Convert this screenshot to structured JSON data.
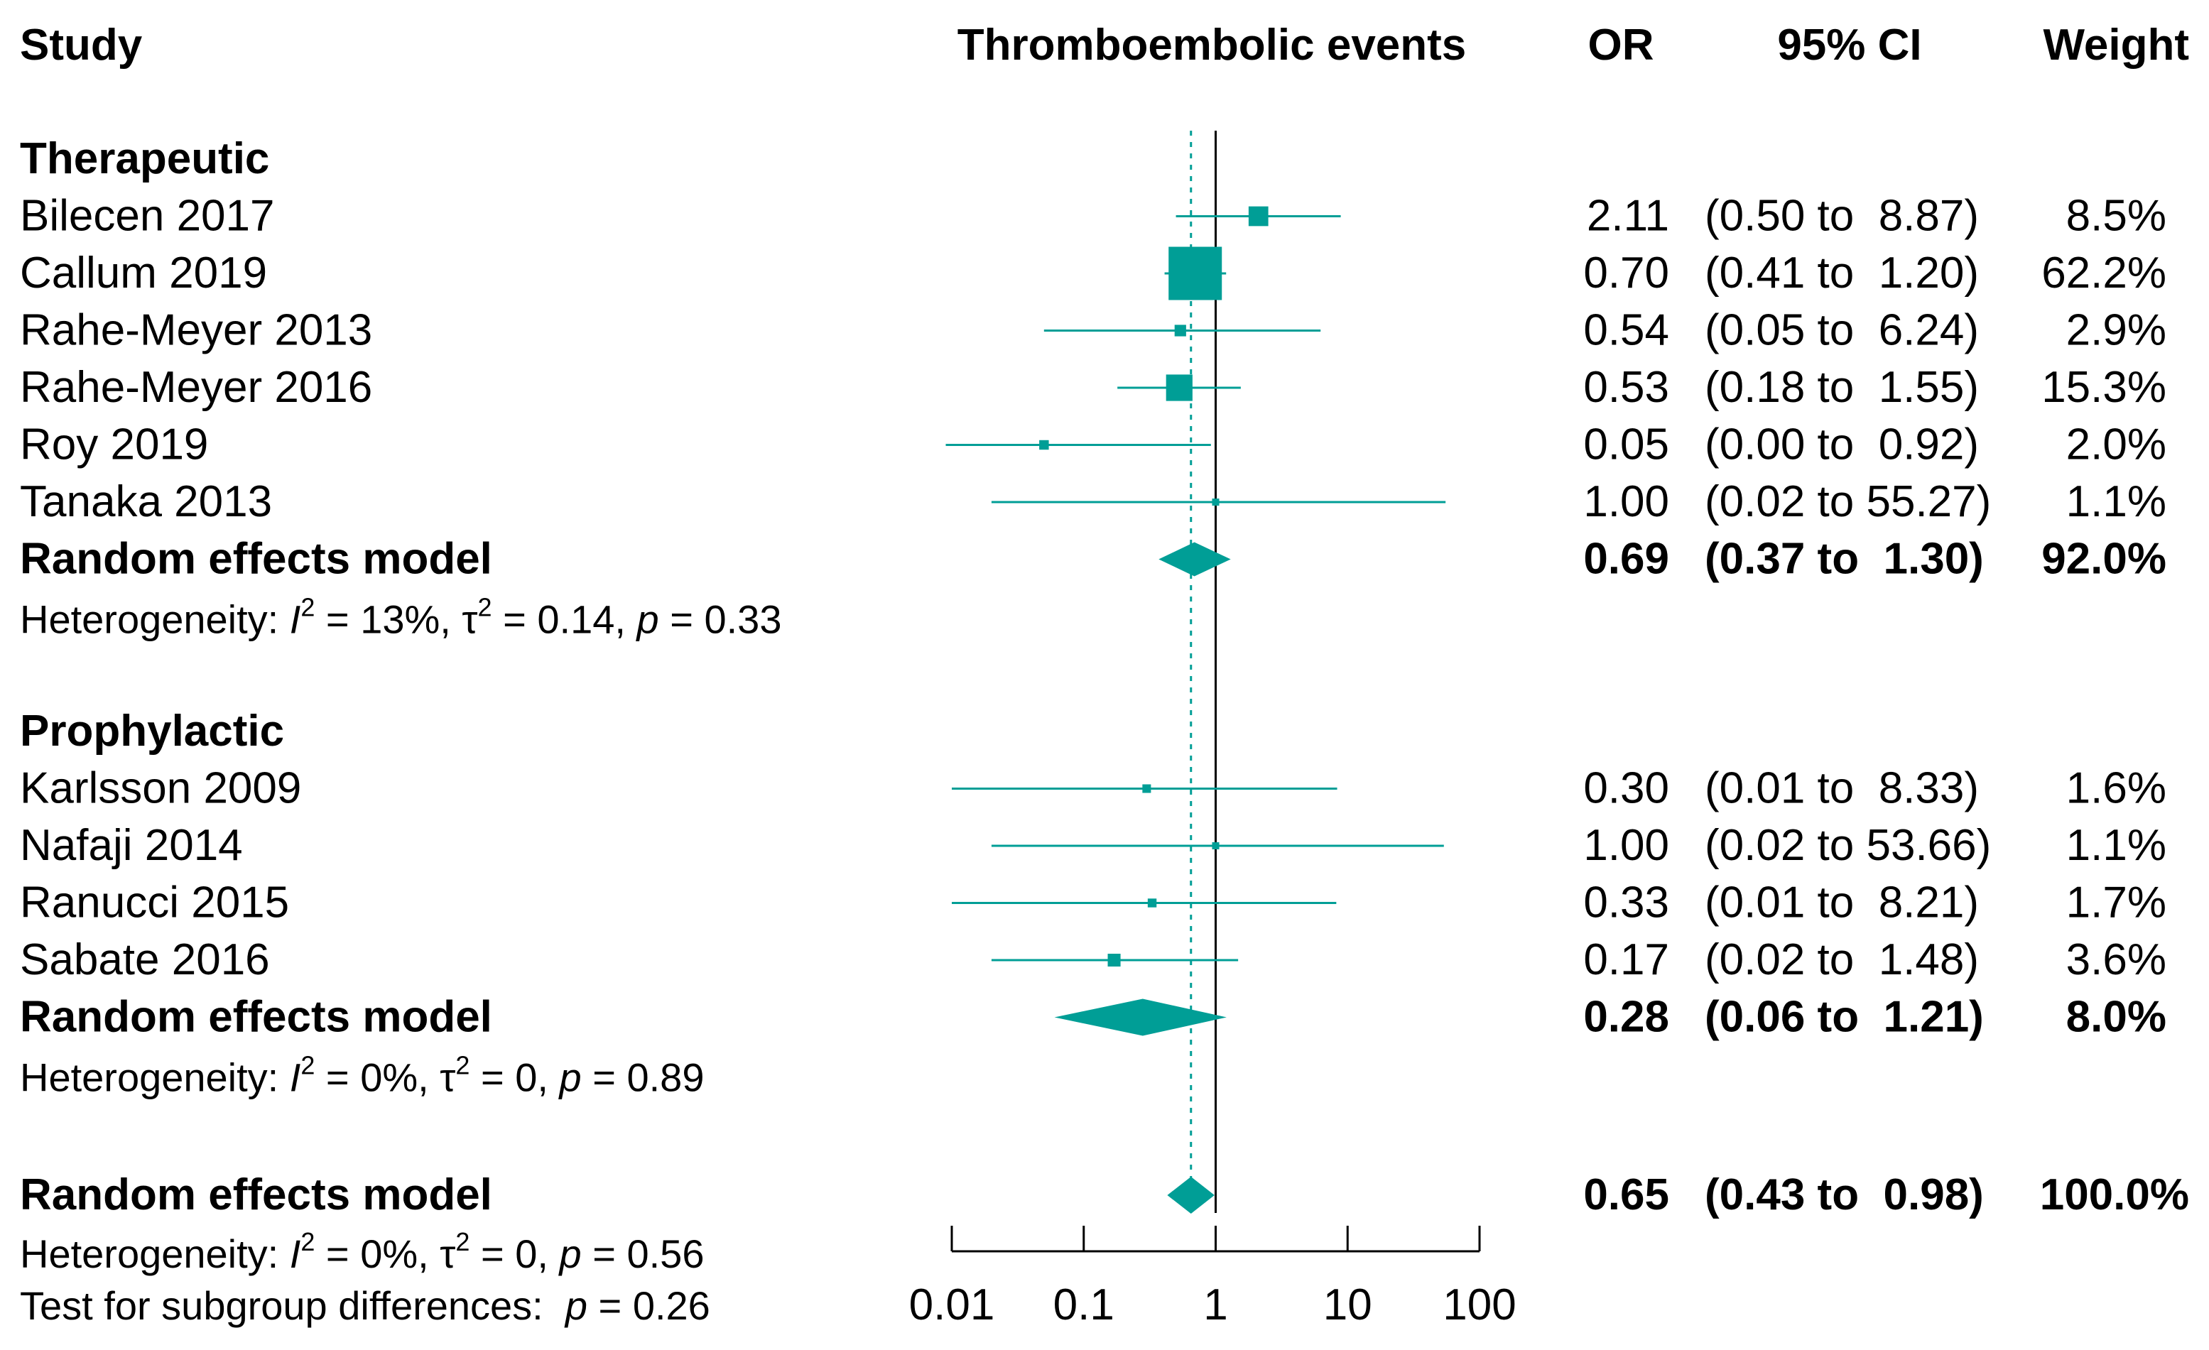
{
  "chart_data": {
    "type": "forest",
    "scale": "log",
    "headers": {
      "study": "Study",
      "plot": "Thromboembolic events",
      "or": "OR",
      "ci": "95% CI",
      "weight": "Weight"
    },
    "xlim": [
      0.01,
      100
    ],
    "xticks": [
      0.01,
      0.1,
      1,
      10,
      100
    ],
    "xtick_labels": [
      "0.01",
      "0.1",
      "1",
      "10",
      "100"
    ],
    "null_value": 1,
    "overall_estimate_line": 0.65,
    "colors": {
      "accent": "#009e96",
      "text": "#000000"
    },
    "groups": [
      {
        "name": "Therapeutic",
        "studies": [
          {
            "study": "Bilecen 2017",
            "or": 2.11,
            "lo": 0.5,
            "hi": 8.87,
            "or_text": "2.11",
            "ci_text": "(0.50 to  8.87)",
            "weight_text": "8.5%",
            "weight": 8.5
          },
          {
            "study": "Callum 2019",
            "or": 0.7,
            "lo": 0.41,
            "hi": 1.2,
            "or_text": "0.70",
            "ci_text": "(0.41 to  1.20)",
            "weight_text": "62.2%",
            "weight": 62.2
          },
          {
            "study": "Rahe-Meyer 2013",
            "or": 0.54,
            "lo": 0.05,
            "hi": 6.24,
            "or_text": "0.54",
            "ci_text": "(0.05 to  6.24)",
            "weight_text": "2.9%",
            "weight": 2.9
          },
          {
            "study": "Rahe-Meyer 2016",
            "or": 0.53,
            "lo": 0.18,
            "hi": 1.55,
            "or_text": "0.53",
            "ci_text": "(0.18 to  1.55)",
            "weight_text": "15.3%",
            "weight": 15.3
          },
          {
            "study": "Roy 2019",
            "or": 0.05,
            "lo": 0.0,
            "hi": 0.92,
            "or_text": "0.05",
            "ci_text": "(0.00 to  0.92)",
            "weight_text": "2.0%",
            "weight": 2.0
          },
          {
            "study": "Tanaka 2013",
            "or": 1.0,
            "lo": 0.02,
            "hi": 55.27,
            "or_text": "1.00",
            "ci_text": "(0.02 to 55.27)",
            "weight_text": "1.1%",
            "weight": 1.1
          }
        ],
        "pooled": {
          "label": "Random effects model",
          "or": 0.69,
          "lo": 0.37,
          "hi": 1.3,
          "or_text": "0.69",
          "ci_text": "(0.37 to  1.30)",
          "weight_text": "92.0%"
        },
        "heterogeneity": {
          "prefix": "Heterogeneity: ",
          "i2": " = 13%, ",
          "tau2": " = 0.14, ",
          "p": " = 0.33"
        }
      },
      {
        "name": "Prophylactic",
        "studies": [
          {
            "study": "Karlsson 2009",
            "or": 0.3,
            "lo": 0.01,
            "hi": 8.33,
            "or_text": "0.30",
            "ci_text": "(0.01 to  8.33)",
            "weight_text": "1.6%",
            "weight": 1.6
          },
          {
            "study": "Nafaji 2014",
            "or": 1.0,
            "lo": 0.02,
            "hi": 53.66,
            "or_text": "1.00",
            "ci_text": "(0.02 to 53.66)",
            "weight_text": "1.1%",
            "weight": 1.1
          },
          {
            "study": "Ranucci 2015",
            "or": 0.33,
            "lo": 0.01,
            "hi": 8.21,
            "or_text": "0.33",
            "ci_text": "(0.01 to  8.21)",
            "weight_text": "1.7%",
            "weight": 1.7
          },
          {
            "study": "Sabate 2016",
            "or": 0.17,
            "lo": 0.02,
            "hi": 1.48,
            "or_text": "0.17",
            "ci_text": "(0.02 to  1.48)",
            "weight_text": "3.6%",
            "weight": 3.6
          }
        ],
        "pooled": {
          "label": "Random effects model",
          "or": 0.28,
          "lo": 0.06,
          "hi": 1.21,
          "or_text": "0.28",
          "ci_text": "(0.06 to  1.21)",
          "weight_text": "8.0%"
        },
        "heterogeneity": {
          "prefix": "Heterogeneity: ",
          "i2": " = 0%, ",
          "tau2": " = 0, ",
          "p": " = 0.89"
        }
      }
    ],
    "overall": {
      "label": "Random effects model",
      "or": 0.65,
      "lo": 0.43,
      "hi": 0.98,
      "or_text": "0.65",
      "ci_text": "(0.43 to  0.98)",
      "weight_text": "100.0%",
      "heterogeneity": {
        "prefix": "Heterogeneity: ",
        "i2": " = 0%, ",
        "tau2": " = 0, ",
        "p": " = 0.56"
      }
    },
    "subgroup_test": {
      "prefix": "Test for subgroup differences:  ",
      "p": " = 0.26"
    },
    "symbols": {
      "i": "I",
      "two": "2",
      "tau": "τ",
      "p": "p"
    }
  }
}
